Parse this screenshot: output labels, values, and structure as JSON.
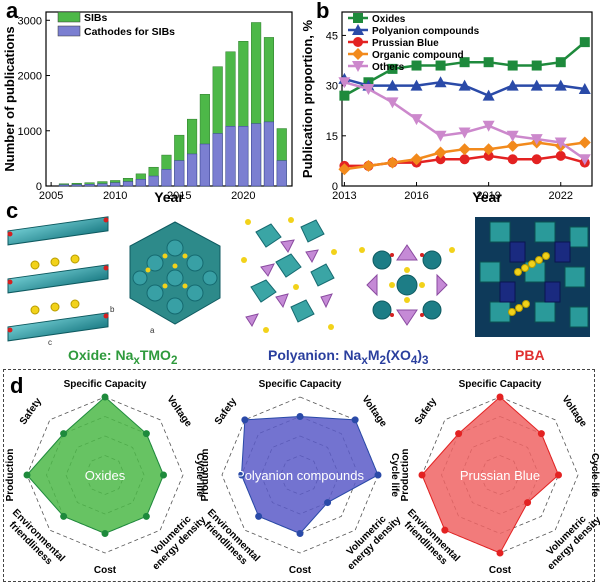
{
  "panels": {
    "a": "a",
    "b": "b",
    "c": "c",
    "d": "d"
  },
  "chart_data": [
    {
      "type": "bar",
      "panel": "a",
      "xlabel": "Year",
      "ylabel": "Number of publications",
      "categories": [
        2006,
        2007,
        2008,
        2009,
        2010,
        2011,
        2012,
        2013,
        2014,
        2015,
        2016,
        2017,
        2018,
        2019,
        2020,
        2021,
        2022,
        2023
      ],
      "xticks": [
        "2005",
        "2010",
        "2015",
        "2020"
      ],
      "yticks": [
        "0",
        "1000",
        "2000",
        "3000"
      ],
      "ylim": [
        0,
        3150
      ],
      "series": [
        {
          "name": "SIBs",
          "color": "#4db848",
          "values": [
            40,
            50,
            60,
            80,
            100,
            140,
            220,
            340,
            560,
            920,
            1210,
            1660,
            2160,
            2430,
            2620,
            2960,
            2690,
            1040
          ]
        },
        {
          "name": "Cathodes for SIBs",
          "color": "#7b7fd1",
          "values": [
            20,
            25,
            30,
            40,
            60,
            80,
            120,
            180,
            300,
            460,
            580,
            760,
            950,
            1080,
            1080,
            1130,
            1160,
            460
          ]
        }
      ]
    },
    {
      "type": "line",
      "panel": "b",
      "xlabel": "Year",
      "ylabel": "Publication proportion, %",
      "x": [
        2013,
        2014,
        2015,
        2016,
        2017,
        2018,
        2019,
        2020,
        2021,
        2022,
        2023
      ],
      "xticks": [
        "2013",
        "2016",
        "2019",
        "2022"
      ],
      "yticks": [
        "0",
        "15",
        "30",
        "45"
      ],
      "ylim": [
        0,
        52
      ],
      "series": [
        {
          "name": "Oxides",
          "color": "#1e8a3c",
          "marker": "square",
          "values": [
            27,
            31,
            35,
            36,
            36,
            37,
            37,
            36,
            36,
            37,
            43
          ]
        },
        {
          "name": "Polyanion compounds",
          "color": "#2a4aa8",
          "marker": "triangle",
          "values": [
            32,
            30,
            30,
            30,
            31,
            30,
            27,
            30,
            30,
            30,
            29
          ]
        },
        {
          "name": "Prussian Blue",
          "color": "#e32222",
          "marker": "circle",
          "values": [
            6,
            6,
            7,
            7,
            8,
            8,
            9,
            8,
            8,
            9,
            7
          ]
        },
        {
          "name": "Organic compound",
          "color": "#f28a1c",
          "marker": "diamond",
          "values": [
            5,
            6,
            7,
            8,
            10,
            11,
            11,
            12,
            13,
            12,
            13
          ]
        },
        {
          "name": "Others",
          "color": "#cc88cc",
          "marker": "triangle-down",
          "values": [
            31,
            29,
            25,
            20,
            15,
            16,
            18,
            15,
            14,
            13,
            8
          ]
        }
      ]
    }
  ],
  "panel_c": {
    "oxide_label": "Oxide: Na",
    "oxide_x": "x",
    "oxide_rest": "TMO",
    "oxide_sub2": "2",
    "poly_label": "Polyanion: Na",
    "poly_x": "x",
    "poly_m": "M",
    "poly_2": "2",
    "poly_paren": "(XO",
    "poly_4": "4",
    "poly_close": ")",
    "poly_3": "3",
    "pba_label": "PBA",
    "axis_a": "a",
    "axis_b": "b",
    "axis_c": "c"
  },
  "radar": {
    "axes": [
      "Specific Capacity",
      "Voltage",
      "Cycle life",
      "Volumetric energy density",
      "Cost",
      "Environmental friendliness",
      "Production",
      "Safety"
    ],
    "charts": [
      {
        "name": "Oxides",
        "color": "#4cb848",
        "dot": "#1e8a3c",
        "values": [
          4,
          3,
          3,
          3,
          3,
          3,
          4,
          3
        ]
      },
      {
        "name": "Polyanion compounds",
        "color": "#5a5ac8",
        "dot": "#2a4aa8",
        "values": [
          3,
          4,
          4,
          2,
          3,
          3,
          3,
          4
        ]
      },
      {
        "name": "Prussian Blue",
        "color": "#f06464",
        "dot": "#e32222",
        "values": [
          4,
          3,
          3,
          2,
          4,
          4,
          4,
          3
        ]
      }
    ],
    "levels": 4
  }
}
